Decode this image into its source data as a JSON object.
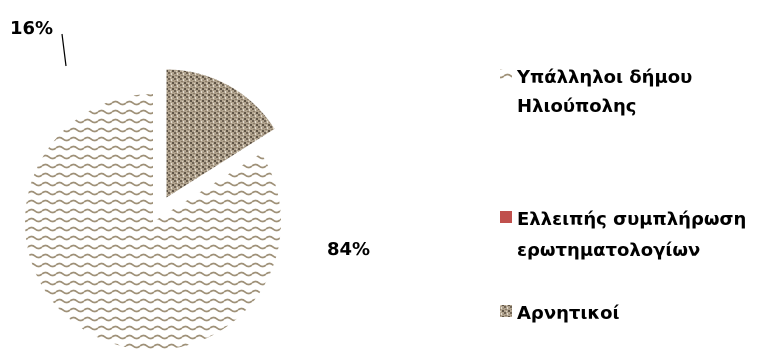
{
  "chart_data": {
    "type": "pie",
    "title": "",
    "slices": [
      {
        "label": "Υπάλληλοι δήμου Ηλιούπολης",
        "value": 84,
        "display": "84%",
        "color": "#b9ad93",
        "pattern": "wave"
      },
      {
        "label": "Ελλειπής συμπλήρωση ερωτηματολογίων",
        "value": 0,
        "display": "",
        "color": "#c0504d",
        "pattern": "solid"
      },
      {
        "label": "Αρνητικοί",
        "value": 16,
        "display": "16%",
        "color": "#a89a88",
        "pattern": "granite"
      }
    ],
    "legend": {
      "position": "right",
      "entries": [
        {
          "lines": [
            "Υπάλληλοι δήμου",
            "Ηλιούπολης"
          ]
        },
        {
          "lines": [
            "Ελλειπής συμπλήρωση",
            "ερωτηματολογίων"
          ]
        },
        {
          "lines": [
            "Αρνητικοί"
          ]
        }
      ]
    }
  }
}
